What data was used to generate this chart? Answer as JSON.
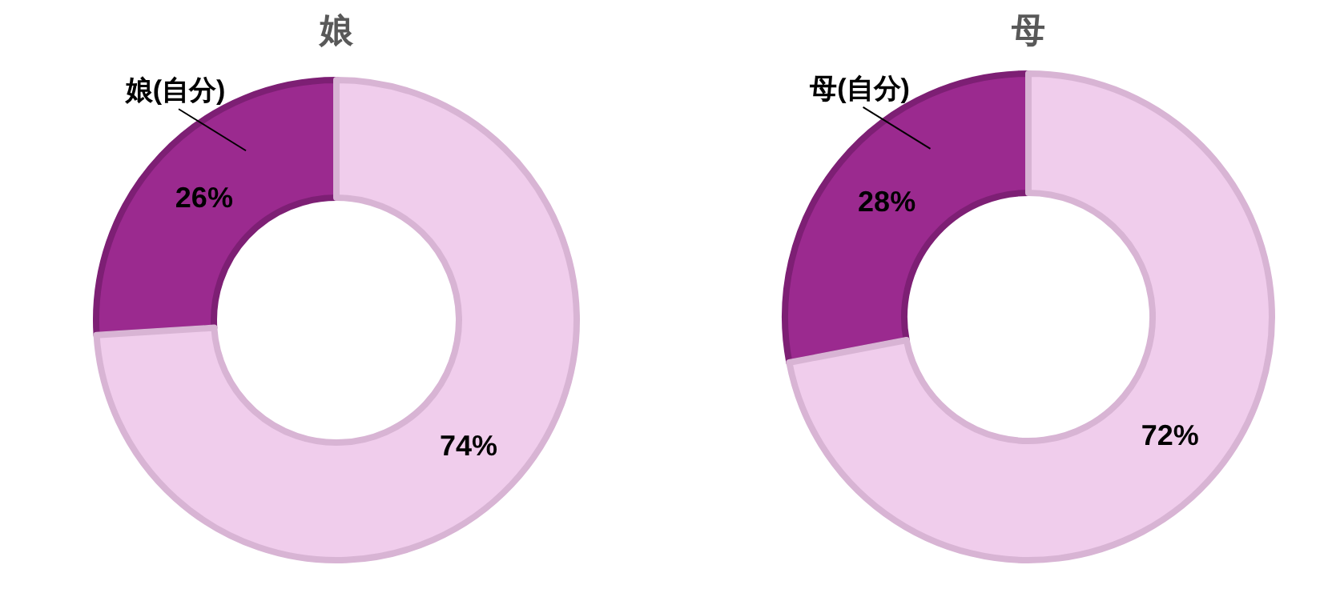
{
  "chart_data": [
    {
      "type": "donut",
      "title": "娘",
      "categories": [
        "娘(自分)",
        null
      ],
      "values": [
        26,
        74
      ],
      "colors": [
        "#9b2a8f",
        "#f0cdec"
      ],
      "value_labels": [
        "26%",
        "74%"
      ]
    },
    {
      "type": "donut",
      "title": "母",
      "categories": [
        "母(自分)",
        null
      ],
      "values": [
        28,
        72
      ],
      "colors": [
        "#9b2a8f",
        "#f0cdec"
      ],
      "value_labels": [
        "28%",
        "72%"
      ]
    }
  ]
}
